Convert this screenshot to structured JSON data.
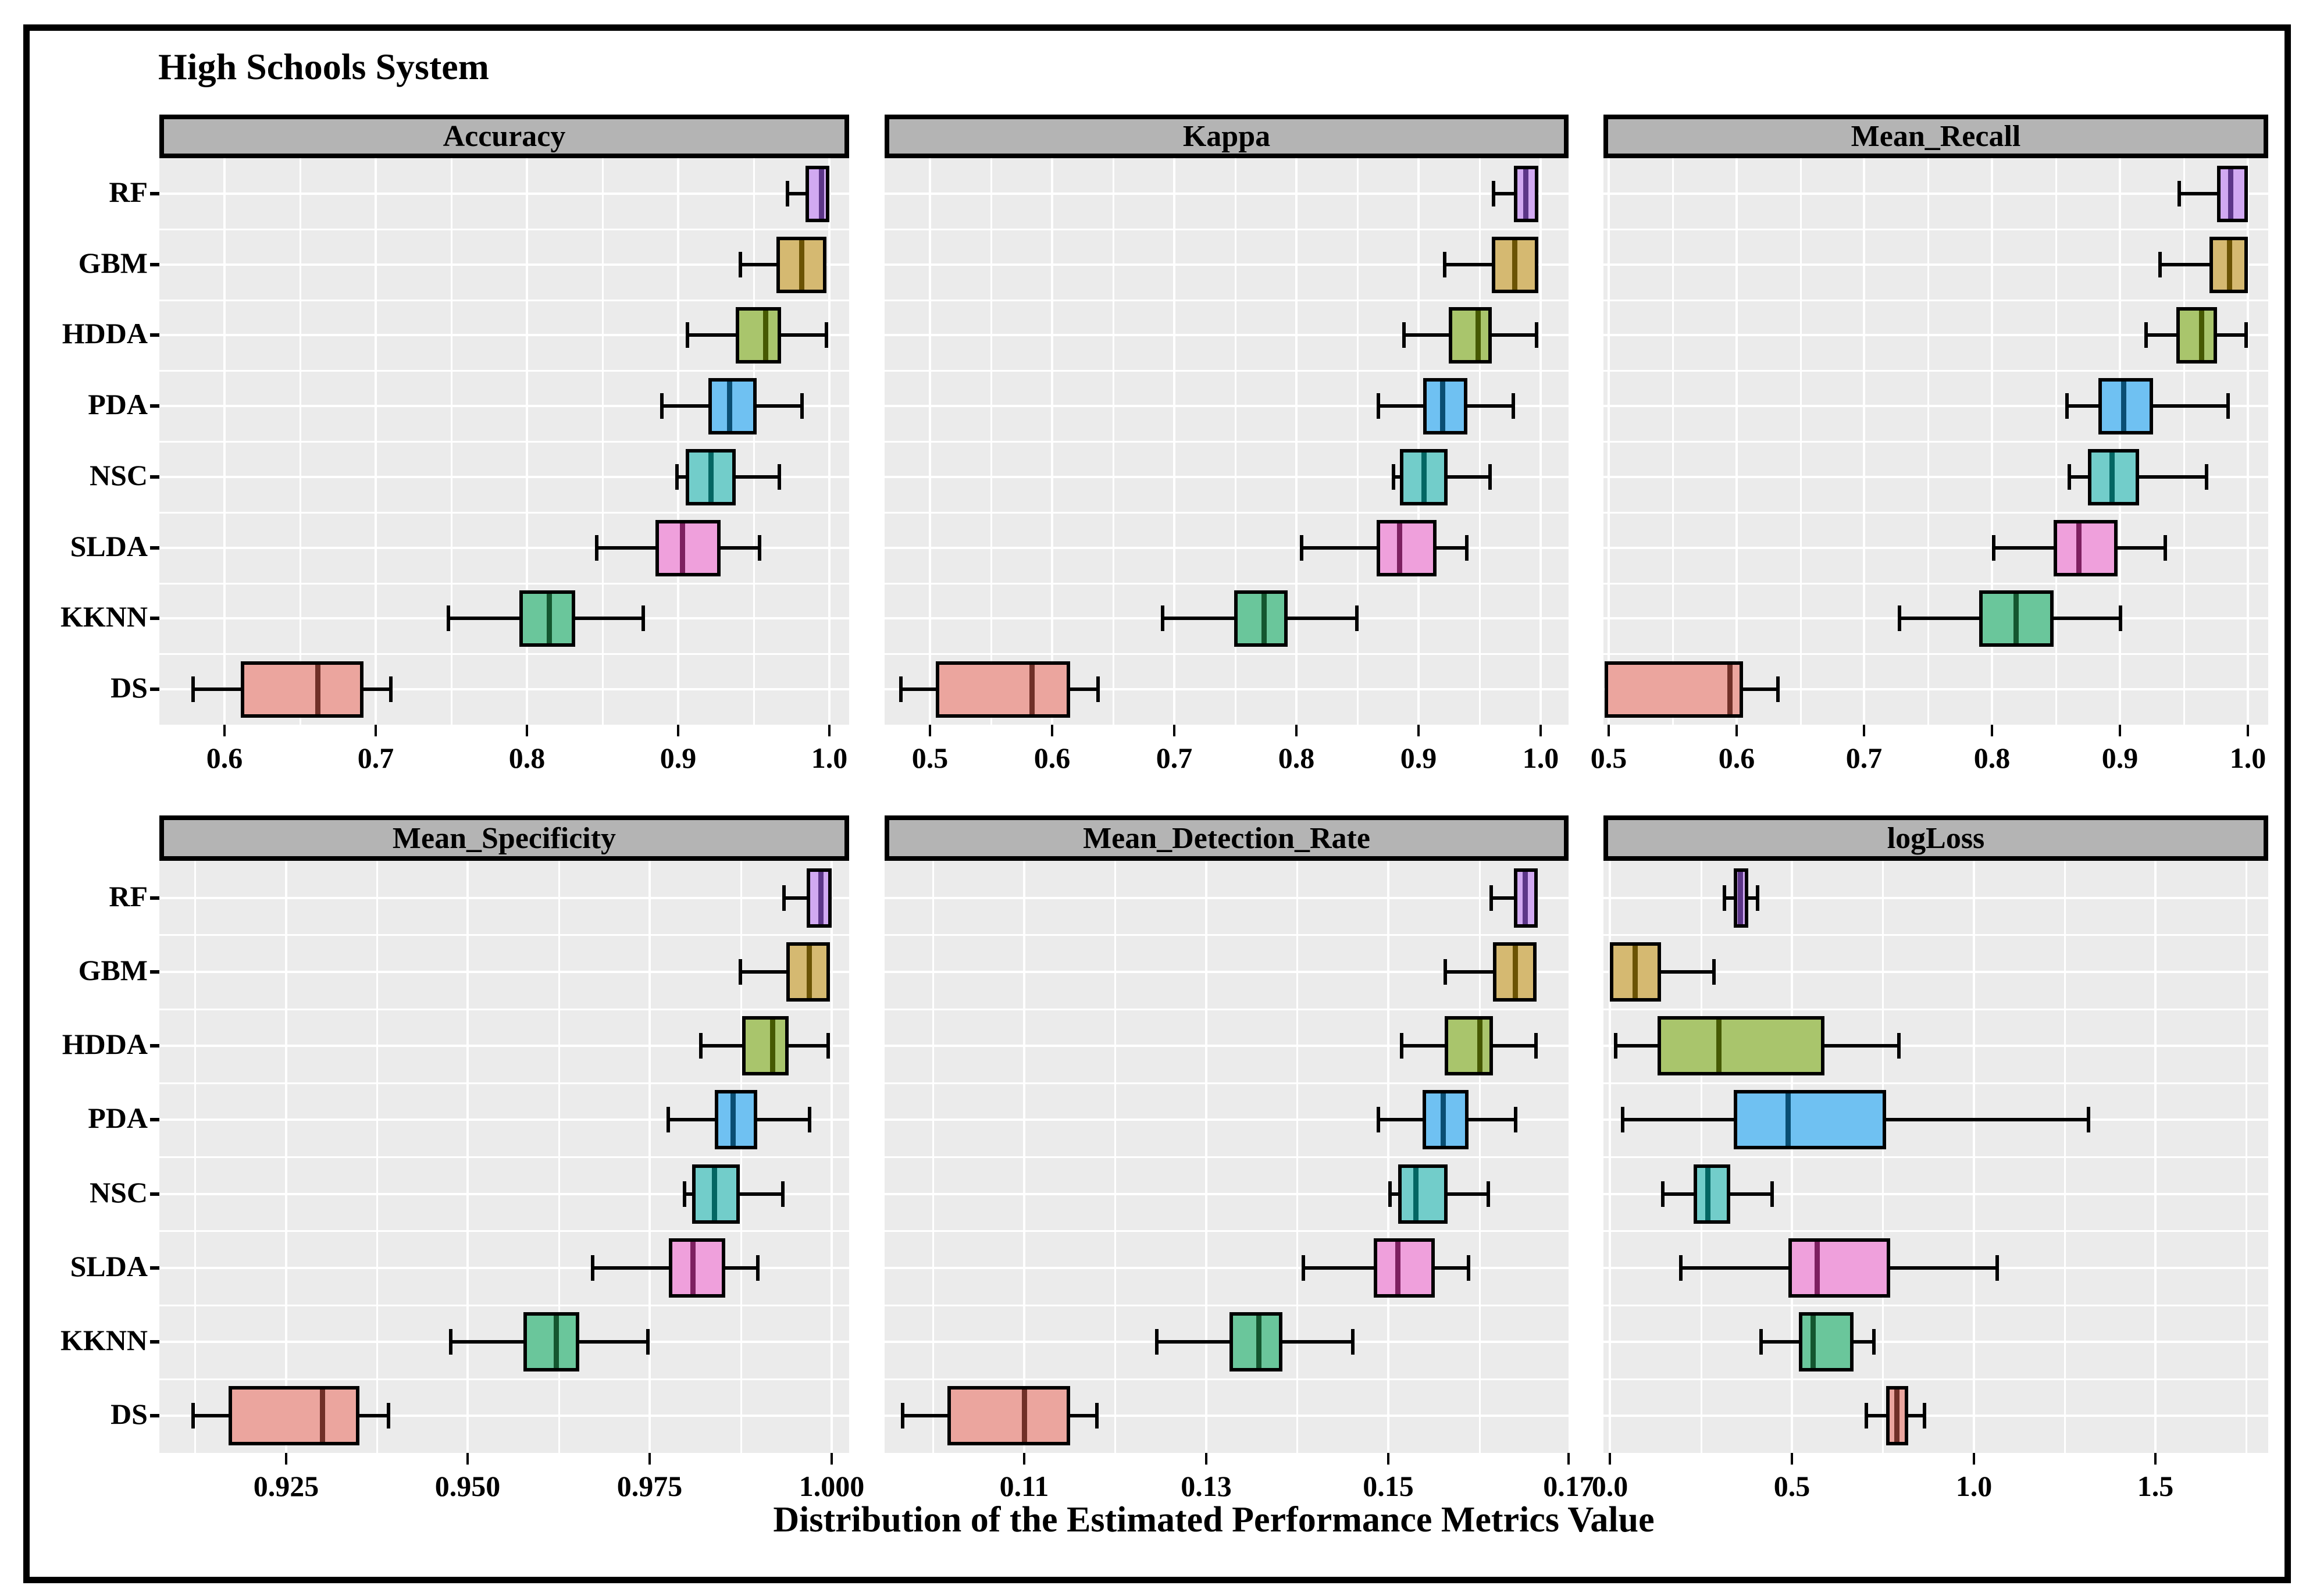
{
  "title": "High Schools System",
  "x_axis_title": "Distribution of the Estimated Performance Metrics Value",
  "classifiers": [
    "RF",
    "GBM",
    "HDDA",
    "PDA",
    "NSC",
    "SLDA",
    "KKNN",
    "DS"
  ],
  "theme": {
    "panel_bg": "#ebebeb",
    "grid": "#ffffff",
    "strip_bg": "#b4b4b4",
    "strip_border": "#000000",
    "box_border": "#000000",
    "frame_border": "#000000"
  },
  "colors": {
    "RF": {
      "fill": "#d1a9f1",
      "median": "#5c3688"
    },
    "GBM": {
      "fill": "#d5b971",
      "median": "#6b5304"
    },
    "HDDA": {
      "fill": "#a9c56c",
      "median": "#465902"
    },
    "PDA": {
      "fill": "#6fc1f2",
      "median": "#0a4e73"
    },
    "NSC": {
      "fill": "#72cdca",
      "median": "#036663"
    },
    "SLDA": {
      "fill": "#efa0dc",
      "median": "#7d2060"
    },
    "KKNN": {
      "fill": "#6ac69b",
      "median": "#14562f"
    },
    "DS": {
      "fill": "#eba59e",
      "median": "#703028"
    }
  },
  "chart_data": {
    "type": "boxplot-grid",
    "orientation": "horizontal",
    "grid": "2 rows x 3 cols",
    "facets": [
      {
        "title": "Accuracy",
        "row": 0,
        "col": 0,
        "range": [
          0.557,
          1.013
        ],
        "ticks": [
          {
            "value": 0.6,
            "label": "0.6"
          },
          {
            "value": 0.7,
            "label": "0.7"
          },
          {
            "value": 0.8,
            "label": "0.8"
          },
          {
            "value": 0.9,
            "label": "0.9"
          },
          {
            "value": 1.0,
            "label": "1.0"
          }
        ],
        "boxes": [
          {
            "classifier": "RF",
            "min": 0.971,
            "q1": 0.984,
            "median": 0.995,
            "q3": 1.0,
            "max": 1.0
          },
          {
            "classifier": "GBM",
            "min": 0.94,
            "q1": 0.965,
            "median": 0.982,
            "q3": 0.998,
            "max": 0.998
          },
          {
            "classifier": "HDDA",
            "min": 0.905,
            "q1": 0.938,
            "median": 0.958,
            "q3": 0.968,
            "max": 0.999
          },
          {
            "classifier": "PDA",
            "min": 0.888,
            "q1": 0.92,
            "median": 0.934,
            "q3": 0.952,
            "max": 0.983
          },
          {
            "classifier": "NSC",
            "min": 0.898,
            "q1": 0.905,
            "median": 0.922,
            "q3": 0.938,
            "max": 0.968
          },
          {
            "classifier": "SLDA",
            "min": 0.845,
            "q1": 0.885,
            "median": 0.903,
            "q3": 0.928,
            "max": 0.955
          },
          {
            "classifier": "KKNN",
            "min": 0.747,
            "q1": 0.795,
            "median": 0.815,
            "q3": 0.832,
            "max": 0.878
          },
          {
            "classifier": "DS",
            "min": 0.578,
            "q1": 0.611,
            "median": 0.662,
            "q3": 0.692,
            "max": 0.711
          }
        ]
      },
      {
        "title": "Kappa",
        "row": 0,
        "col": 1,
        "range": [
          0.463,
          1.023
        ],
        "ticks": [
          {
            "value": 0.5,
            "label": "0.5"
          },
          {
            "value": 0.6,
            "label": "0.6"
          },
          {
            "value": 0.7,
            "label": "0.7"
          },
          {
            "value": 0.8,
            "label": "0.8"
          },
          {
            "value": 0.9,
            "label": "0.9"
          },
          {
            "value": 1.0,
            "label": "1.0"
          }
        ],
        "boxes": [
          {
            "classifier": "RF",
            "min": 0.96,
            "q1": 0.978,
            "median": 0.988,
            "q3": 0.998,
            "max": 0.998
          },
          {
            "classifier": "GBM",
            "min": 0.92,
            "q1": 0.96,
            "median": 0.979,
            "q3": 0.998,
            "max": 0.998
          },
          {
            "classifier": "HDDA",
            "min": 0.887,
            "q1": 0.925,
            "median": 0.949,
            "q3": 0.96,
            "max": 0.998
          },
          {
            "classifier": "PDA",
            "min": 0.866,
            "q1": 0.904,
            "median": 0.92,
            "q3": 0.94,
            "max": 0.979
          },
          {
            "classifier": "NSC",
            "min": 0.878,
            "q1": 0.885,
            "median": 0.905,
            "q3": 0.924,
            "max": 0.96
          },
          {
            "classifier": "SLDA",
            "min": 0.803,
            "q1": 0.866,
            "median": 0.885,
            "q3": 0.915,
            "max": 0.941
          },
          {
            "classifier": "KKNN",
            "min": 0.689,
            "q1": 0.749,
            "median": 0.774,
            "q3": 0.793,
            "max": 0.851
          },
          {
            "classifier": "DS",
            "min": 0.475,
            "q1": 0.505,
            "median": 0.584,
            "q3": 0.615,
            "max": 0.639
          }
        ]
      },
      {
        "title": "Mean_Recall",
        "row": 0,
        "col": 2,
        "range": [
          0.496,
          1.016
        ],
        "ticks": [
          {
            "value": 0.5,
            "label": "0.5"
          },
          {
            "value": 0.6,
            "label": "0.6"
          },
          {
            "value": 0.7,
            "label": "0.7"
          },
          {
            "value": 0.8,
            "label": "0.8"
          },
          {
            "value": 0.9,
            "label": "0.9"
          },
          {
            "value": 1.0,
            "label": "1.0"
          }
        ],
        "boxes": [
          {
            "classifier": "RF",
            "min": 0.945,
            "q1": 0.976,
            "median": 0.987,
            "q3": 1.0,
            "max": 1.0
          },
          {
            "classifier": "GBM",
            "min": 0.93,
            "q1": 0.97,
            "median": 0.986,
            "q3": 1.0,
            "max": 1.0
          },
          {
            "classifier": "HDDA",
            "min": 0.919,
            "q1": 0.944,
            "median": 0.964,
            "q3": 0.976,
            "max": 1.0
          },
          {
            "classifier": "PDA",
            "min": 0.857,
            "q1": 0.883,
            "median": 0.903,
            "q3": 0.926,
            "max": 0.986
          },
          {
            "classifier": "NSC",
            "min": 0.859,
            "q1": 0.875,
            "median": 0.894,
            "q3": 0.915,
            "max": 0.969
          },
          {
            "classifier": "SLDA",
            "min": 0.8,
            "q1": 0.848,
            "median": 0.868,
            "q3": 0.898,
            "max": 0.937
          },
          {
            "classifier": "KKNN",
            "min": 0.726,
            "q1": 0.79,
            "median": 0.819,
            "q3": 0.848,
            "max": 0.902
          },
          {
            "classifier": "DS",
            "min": 0.497,
            "q1": 0.497,
            "median": 0.595,
            "q3": 0.605,
            "max": 0.634
          }
        ]
      },
      {
        "title": "Mean_Specificity",
        "row": 1,
        "col": 0,
        "range": [
          0.9076,
          1.0024
        ],
        "ticks": [
          {
            "value": 0.925,
            "label": "0.925"
          },
          {
            "value": 0.95,
            "label": "0.950"
          },
          {
            "value": 0.975,
            "label": "0.975"
          },
          {
            "value": 1.0,
            "label": "1.000"
          }
        ],
        "boxes": [
          {
            "classifier": "RF",
            "min": 0.9932,
            "q1": 0.9966,
            "median": 0.9986,
            "q3": 1.0,
            "max": 1.0
          },
          {
            "classifier": "GBM",
            "min": 0.9872,
            "q1": 0.9938,
            "median": 0.997,
            "q3": 0.9998,
            "max": 0.9998
          },
          {
            "classifier": "HDDA",
            "min": 0.9818,
            "q1": 0.9877,
            "median": 0.9919,
            "q3": 0.9941,
            "max": 0.9998
          },
          {
            "classifier": "PDA",
            "min": 0.9773,
            "q1": 0.9839,
            "median": 0.9865,
            "q3": 0.9898,
            "max": 0.9972
          },
          {
            "classifier": "NSC",
            "min": 0.9795,
            "q1": 0.9808,
            "median": 0.9839,
            "q3": 0.9874,
            "max": 0.9935
          },
          {
            "classifier": "SLDA",
            "min": 0.9669,
            "q1": 0.9776,
            "median": 0.981,
            "q3": 0.9854,
            "max": 0.9901
          },
          {
            "classifier": "KKNN",
            "min": 0.9474,
            "q1": 0.9576,
            "median": 0.9622,
            "q3": 0.9653,
            "max": 0.975
          },
          {
            "classifier": "DS",
            "min": 0.912,
            "q1": 0.9171,
            "median": 0.9301,
            "q3": 0.9351,
            "max": 0.9393
          }
        ]
      },
      {
        "title": "Mean_Detection_Rate",
        "row": 1,
        "col": 1,
        "range": [
          0.0947,
          0.1698
        ],
        "ticks": [
          {
            "value": 0.11,
            "label": "0.11"
          },
          {
            "value": 0.13,
            "label": "0.13"
          },
          {
            "value": 0.15,
            "label": "0.15"
          },
          {
            "value": 0.17,
            "label": "0.17"
          }
        ],
        "boxes": [
          {
            "classifier": "RF",
            "min": 0.1611,
            "q1": 0.1638,
            "median": 0.1651,
            "q3": 0.1664,
            "max": 0.1664
          },
          {
            "classifier": "GBM",
            "min": 0.1561,
            "q1": 0.1615,
            "median": 0.164,
            "q3": 0.1663,
            "max": 0.1663
          },
          {
            "classifier": "HDDA",
            "min": 0.1513,
            "q1": 0.1562,
            "median": 0.1601,
            "q3": 0.1615,
            "max": 0.1664
          },
          {
            "classifier": "PDA",
            "min": 0.1487,
            "q1": 0.1538,
            "median": 0.1561,
            "q3": 0.1588,
            "max": 0.1642
          },
          {
            "classifier": "NSC",
            "min": 0.15,
            "q1": 0.1511,
            "median": 0.1531,
            "q3": 0.1565,
            "max": 0.1612
          },
          {
            "classifier": "SLDA",
            "min": 0.1405,
            "q1": 0.1484,
            "median": 0.1511,
            "q3": 0.1551,
            "max": 0.159
          },
          {
            "classifier": "KKNN",
            "min": 0.1244,
            "q1": 0.1326,
            "median": 0.1358,
            "q3": 0.1384,
            "max": 0.1463
          },
          {
            "classifier": "DS",
            "min": 0.0965,
            "q1": 0.1016,
            "median": 0.1101,
            "q3": 0.1151,
            "max": 0.1182
          }
        ]
      },
      {
        "title": "logLoss",
        "row": 1,
        "col": 2,
        "range": [
          -0.018,
          1.81
        ],
        "ticks": [
          {
            "value": 0.0,
            "label": "0.0"
          },
          {
            "value": 0.5,
            "label": "0.5"
          },
          {
            "value": 1.0,
            "label": "1.0"
          },
          {
            "value": 1.5,
            "label": "1.5"
          }
        ],
        "boxes": [
          {
            "classifier": "RF",
            "min": 0.31,
            "q1": 0.34,
            "median": 0.36,
            "q3": 0.38,
            "max": 0.41
          },
          {
            "classifier": "GBM",
            "min": 0.0,
            "q1": 0.0,
            "median": 0.07,
            "q3": 0.14,
            "max": 0.29
          },
          {
            "classifier": "HDDA",
            "min": 0.01,
            "q1": 0.13,
            "median": 0.3,
            "q3": 0.59,
            "max": 0.8
          },
          {
            "classifier": "PDA",
            "min": 0.03,
            "q1": 0.34,
            "median": 0.49,
            "q3": 0.76,
            "max": 1.32
          },
          {
            "classifier": "NSC",
            "min": 0.14,
            "q1": 0.23,
            "median": 0.27,
            "q3": 0.33,
            "max": 0.45
          },
          {
            "classifier": "SLDA",
            "min": 0.19,
            "q1": 0.49,
            "median": 0.57,
            "q3": 0.77,
            "max": 1.07
          },
          {
            "classifier": "KKNN",
            "min": 0.41,
            "q1": 0.52,
            "median": 0.56,
            "q3": 0.67,
            "max": 0.73
          },
          {
            "classifier": "DS",
            "min": 0.7,
            "q1": 0.76,
            "median": 0.79,
            "q3": 0.82,
            "max": 0.87
          }
        ]
      }
    ]
  }
}
